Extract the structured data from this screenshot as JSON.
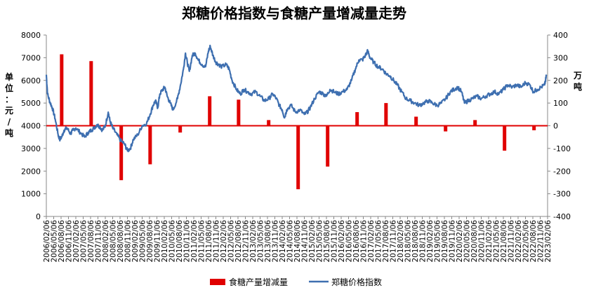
{
  "chart_data": {
    "type": "bar+line",
    "title": "郑糖价格指数与食糖产量增减量走势",
    "left_axis": {
      "unit_chars": [
        "单",
        "位",
        "：",
        "元",
        "/",
        "吨"
      ],
      "range": [
        0,
        8000
      ],
      "ticks": [
        "0",
        "1000",
        "2000",
        "3000",
        "4000",
        "5000",
        "6000",
        "7000",
        "8000"
      ]
    },
    "right_axis": {
      "unit_chars": [
        "万",
        "吨"
      ],
      "range": [
        -400,
        400
      ],
      "ticks": [
        "-400",
        "-300",
        "-200",
        "-100",
        "0",
        "100",
        "200",
        "300",
        "400"
      ]
    },
    "x_labels": [
      "2006/02/06",
      "2006/05/06",
      "2006/08/06",
      "2006/11/06",
      "2007/02/06",
      "2007/05/06",
      "2007/08/06",
      "2007/11/06",
      "2008/02/06",
      "2008/05/06",
      "2008/08/06",
      "2008/11/06",
      "2009/02/06",
      "2009/05/06",
      "2009/08/06",
      "2009/11/06",
      "2010/02/06",
      "2010/05/06",
      "2010/08/06",
      "2010/11/06",
      "2011/02/06",
      "2011/05/06",
      "2011/08/06",
      "2011/11/06",
      "2012/02/06",
      "2012/05/06",
      "2012/08/06",
      "2012/11/06",
      "2013/02/06",
      "2013/05/06",
      "2013/08/06",
      "2013/11/06",
      "2014/02/06",
      "2014/05/06",
      "2014/08/06",
      "2014/11/06",
      "2015/02/06",
      "2015/05/06",
      "2015/08/06",
      "2015/11/06",
      "2016/02/06",
      "2016/05/06",
      "2016/08/06",
      "2016/11/06",
      "2017/02/06",
      "2017/05/06",
      "2017/08/06",
      "2017/11/06",
      "2018/02/06",
      "2018/05/06",
      "2018/08/06",
      "2018/11/06",
      "2019/02/06",
      "2019/05/06",
      "2019/08/06",
      "2019/11/06",
      "2020/02/06",
      "2020/05/06",
      "2020/08/06",
      "2020/11/06",
      "2021/02/06",
      "2021/05/06",
      "2021/08/06",
      "2021/11/06",
      "2022/02/06",
      "2022/05/06",
      "2022/08/06",
      "2022/11/06",
      "2023/02/06"
    ],
    "series": [
      {
        "name": "食糖产量增减量",
        "type": "bar",
        "axis": "right",
        "color": "#e00000",
        "points": [
          {
            "x": 2006.62,
            "y": 315
          },
          {
            "x": 2007.62,
            "y": 285
          },
          {
            "x": 2008.64,
            "y": -240
          },
          {
            "x": 2009.62,
            "y": -170
          },
          {
            "x": 2010.64,
            "y": -30
          },
          {
            "x": 2011.64,
            "y": 130
          },
          {
            "x": 2012.62,
            "y": 115
          },
          {
            "x": 2013.64,
            "y": 25
          },
          {
            "x": 2014.64,
            "y": -280
          },
          {
            "x": 2015.64,
            "y": -180
          },
          {
            "x": 2016.64,
            "y": 60
          },
          {
            "x": 2017.62,
            "y": 100
          },
          {
            "x": 2018.64,
            "y": 40
          },
          {
            "x": 2019.64,
            "y": -25
          },
          {
            "x": 2020.64,
            "y": 25
          },
          {
            "x": 2021.64,
            "y": -110
          },
          {
            "x": 2022.64,
            "y": -20
          }
        ]
      },
      {
        "name": "郑糖价格指数",
        "type": "line",
        "axis": "left",
        "color": "#3e6fb0",
        "points": [
          [
            2006.1,
            6250
          ],
          [
            2006.14,
            5400
          ],
          [
            2006.22,
            5050
          ],
          [
            2006.3,
            4800
          ],
          [
            2006.4,
            4300
          ],
          [
            2006.5,
            3600
          ],
          [
            2006.55,
            3400
          ],
          [
            2006.62,
            3500
          ],
          [
            2006.7,
            3800
          ],
          [
            2006.8,
            3900
          ],
          [
            2006.92,
            3650
          ],
          [
            2007.0,
            3800
          ],
          [
            2007.1,
            3900
          ],
          [
            2007.25,
            3700
          ],
          [
            2007.4,
            3500
          ],
          [
            2007.52,
            3700
          ],
          [
            2007.62,
            3800
          ],
          [
            2007.72,
            3900
          ],
          [
            2007.82,
            4050
          ],
          [
            2007.92,
            3950
          ],
          [
            2008.0,
            3800
          ],
          [
            2008.1,
            4000
          ],
          [
            2008.2,
            4600
          ],
          [
            2008.26,
            4200
          ],
          [
            2008.35,
            3900
          ],
          [
            2008.5,
            3600
          ],
          [
            2008.62,
            3350
          ],
          [
            2008.75,
            3200
          ],
          [
            2008.85,
            2900
          ],
          [
            2008.95,
            3000
          ],
          [
            2009.05,
            3400
          ],
          [
            2009.2,
            3600
          ],
          [
            2009.35,
            4000
          ],
          [
            2009.5,
            4100
          ],
          [
            2009.62,
            4500
          ],
          [
            2009.72,
            4900
          ],
          [
            2009.8,
            5100
          ],
          [
            2009.88,
            4800
          ],
          [
            2009.95,
            5400
          ],
          [
            2010.05,
            5600
          ],
          [
            2010.12,
            5700
          ],
          [
            2010.2,
            5300
          ],
          [
            2010.3,
            5000
          ],
          [
            2010.4,
            4700
          ],
          [
            2010.55,
            5200
          ],
          [
            2010.65,
            5800
          ],
          [
            2010.75,
            6500
          ],
          [
            2010.82,
            7200
          ],
          [
            2010.88,
            6800
          ],
          [
            2010.95,
            6400
          ],
          [
            2011.05,
            7100
          ],
          [
            2011.15,
            7200
          ],
          [
            2011.25,
            6900
          ],
          [
            2011.38,
            6700
          ],
          [
            2011.5,
            6600
          ],
          [
            2011.6,
            7300
          ],
          [
            2011.66,
            7500
          ],
          [
            2011.75,
            7100
          ],
          [
            2011.85,
            6800
          ],
          [
            2011.95,
            6700
          ],
          [
            2012.05,
            6600
          ],
          [
            2012.2,
            6700
          ],
          [
            2012.3,
            6500
          ],
          [
            2012.4,
            6000
          ],
          [
            2012.55,
            5600
          ],
          [
            2012.68,
            5400
          ],
          [
            2012.8,
            5600
          ],
          [
            2012.92,
            5500
          ],
          [
            2013.05,
            5400
          ],
          [
            2013.2,
            5500
          ],
          [
            2013.35,
            5300
          ],
          [
            2013.5,
            5100
          ],
          [
            2013.65,
            5200
          ],
          [
            2013.78,
            5400
          ],
          [
            2013.9,
            5200
          ],
          [
            2014.0,
            4900
          ],
          [
            2014.1,
            4700
          ],
          [
            2014.18,
            4350
          ],
          [
            2014.25,
            4700
          ],
          [
            2014.4,
            4900
          ],
          [
            2014.55,
            4600
          ],
          [
            2014.7,
            4700
          ],
          [
            2014.85,
            4500
          ],
          [
            2014.95,
            4600
          ],
          [
            2015.05,
            4800
          ],
          [
            2015.2,
            5200
          ],
          [
            2015.35,
            5500
          ],
          [
            2015.5,
            5400
          ],
          [
            2015.6,
            5300
          ],
          [
            2015.72,
            5600
          ],
          [
            2015.85,
            5500
          ],
          [
            2016.0,
            5400
          ],
          [
            2016.15,
            5500
          ],
          [
            2016.3,
            5600
          ],
          [
            2016.45,
            6000
          ],
          [
            2016.58,
            6500
          ],
          [
            2016.7,
            6900
          ],
          [
            2016.82,
            6900
          ],
          [
            2016.92,
            7100
          ],
          [
            2017.0,
            7300
          ],
          [
            2017.08,
            7000
          ],
          [
            2017.2,
            6800
          ],
          [
            2017.35,
            6600
          ],
          [
            2017.5,
            6500
          ],
          [
            2017.62,
            6300
          ],
          [
            2017.75,
            6200
          ],
          [
            2017.88,
            6000
          ],
          [
            2018.0,
            5800
          ],
          [
            2018.15,
            5500
          ],
          [
            2018.3,
            5200
          ],
          [
            2018.45,
            5100
          ],
          [
            2018.6,
            5000
          ],
          [
            2018.75,
            4900
          ],
          [
            2018.9,
            5000
          ],
          [
            2019.05,
            5100
          ],
          [
            2019.2,
            5000
          ],
          [
            2019.35,
            4900
          ],
          [
            2019.5,
            5000
          ],
          [
            2019.65,
            5200
          ],
          [
            2019.8,
            5500
          ],
          [
            2019.92,
            5600
          ],
          [
            2020.05,
            5700
          ],
          [
            2020.18,
            5500
          ],
          [
            2020.28,
            5000
          ],
          [
            2020.4,
            5100
          ],
          [
            2020.55,
            5200
          ],
          [
            2020.7,
            5300
          ],
          [
            2020.85,
            5200
          ],
          [
            2021.0,
            5300
          ],
          [
            2021.15,
            5400
          ],
          [
            2021.3,
            5500
          ],
          [
            2021.45,
            5400
          ],
          [
            2021.6,
            5600
          ],
          [
            2021.75,
            5800
          ],
          [
            2021.9,
            5700
          ],
          [
            2022.05,
            5800
          ],
          [
            2022.2,
            5700
          ],
          [
            2022.35,
            5900
          ],
          [
            2022.5,
            5800
          ],
          [
            2022.62,
            5500
          ],
          [
            2022.75,
            5600
          ],
          [
            2022.88,
            5700
          ],
          [
            2023.0,
            5800
          ],
          [
            2023.06,
            6200
          ]
        ]
      }
    ]
  }
}
